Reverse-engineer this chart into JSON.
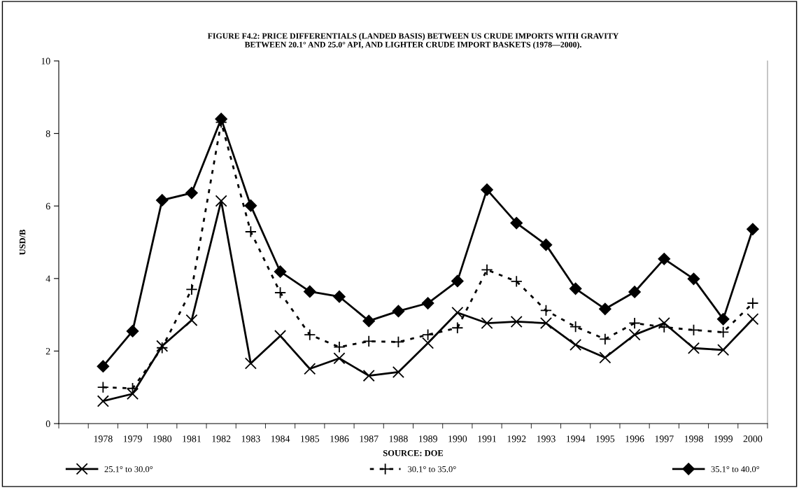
{
  "chart_data": {
    "type": "line",
    "title": "FIGURE F4.2: PRICE DIFFERENTIALS (LANDED BASIS) BETWEEN US CRUDE IMPORTS WITH GRAVITY\nBETWEEN 20.1° AND 25.0° API, AND LIGHTER CRUDE IMPORT BASKETS (1978—2000).",
    "xlabel": "SOURCE: DOE",
    "ylabel": "USD/B",
    "categories": [
      null,
      "1978",
      "1979",
      "1980",
      "1981",
      "1982",
      "1983",
      "1984",
      "1985",
      "1986",
      "1987",
      "1988",
      "1989",
      "1990",
      "1991",
      "1992",
      "1993",
      "1994",
      "1995",
      "1996",
      "1997",
      "1998",
      "1999",
      "2000"
    ],
    "series": [
      {
        "name": "25.1° to 30.0°",
        "color": "#000000",
        "marker": "cross",
        "line_style": "solid",
        "values": [
          null,
          0.62,
          0.82,
          2.14,
          2.85,
          6.14,
          1.66,
          2.42,
          1.51,
          1.8,
          1.32,
          1.42,
          2.22,
          3.06,
          2.77,
          2.81,
          2.77,
          2.17,
          1.82,
          2.45,
          2.77,
          2.08,
          2.03,
          2.88
        ]
      },
      {
        "name": "30.1° to 35.0°",
        "color": "#000000",
        "marker": "plus",
        "line_style": "dashed",
        "values": [
          null,
          1.0,
          0.97,
          2.09,
          3.7,
          8.31,
          5.29,
          3.61,
          2.45,
          2.11,
          2.27,
          2.25,
          2.45,
          2.64,
          4.24,
          3.92,
          3.12,
          2.67,
          2.33,
          2.77,
          2.66,
          2.58,
          2.52,
          3.32
        ]
      },
      {
        "name": "35.1° to 40.0°",
        "color": "#000000",
        "marker": "diamond",
        "line_style": "solid",
        "values": [
          null,
          1.58,
          2.55,
          6.16,
          6.36,
          8.4,
          6.01,
          4.19,
          3.64,
          3.5,
          2.83,
          3.1,
          3.32,
          3.93,
          6.45,
          5.53,
          4.93,
          3.72,
          3.16,
          3.63,
          4.54,
          3.99,
          2.88,
          5.36
        ]
      }
    ],
    "ylim": [
      0,
      10
    ],
    "yticks": [
      0,
      2,
      4,
      6,
      8,
      10
    ],
    "grid": false,
    "legend": "bottom"
  }
}
